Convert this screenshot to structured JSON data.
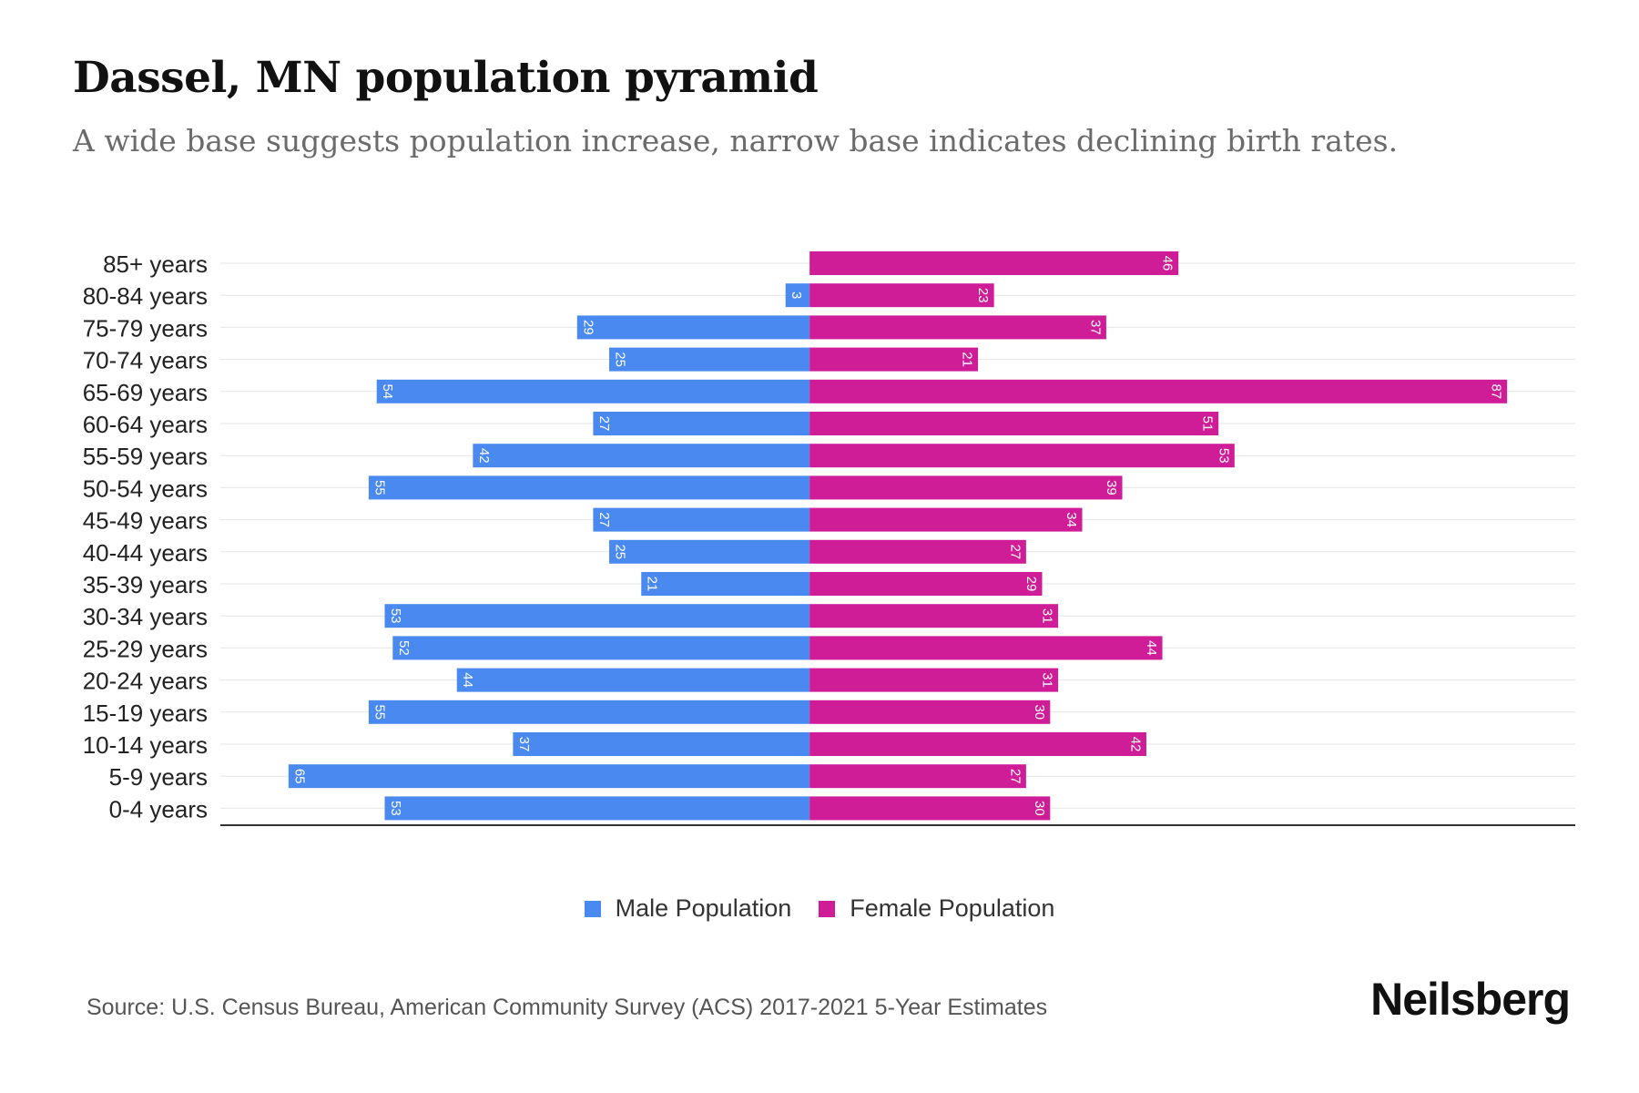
{
  "title": "Dassel, MN population pyramid",
  "subtitle": "A wide base suggests population increase, narrow base indicates declining birth rates.",
  "legend": {
    "male": "Male Population",
    "female": "Female Population"
  },
  "colors": {
    "male": "#4a8af0",
    "female": "#cf1d98",
    "grid": "#e6e6e6",
    "axis": "#333333"
  },
  "source": "Source: U.S. Census Bureau, American Community Survey (ACS) 2017-2021 5-Year Estimates",
  "brand": "Neilsberg",
  "chart_data": {
    "type": "bar",
    "orientation": "horizontal-diverging",
    "categories": [
      "85+ years",
      "80-84 years",
      "75-79 years",
      "70-74 years",
      "65-69 years",
      "60-64 years",
      "55-59 years",
      "50-54 years",
      "45-49 years",
      "40-44 years",
      "35-39 years",
      "30-34 years",
      "25-29 years",
      "20-24 years",
      "15-19 years",
      "10-14 years",
      "5-9 years",
      "0-4 years"
    ],
    "series": [
      {
        "name": "Male Population",
        "values": [
          0,
          3,
          29,
          25,
          54,
          27,
          42,
          55,
          27,
          25,
          21,
          53,
          52,
          44,
          55,
          37,
          65,
          53
        ]
      },
      {
        "name": "Female Population",
        "values": [
          46,
          23,
          37,
          21,
          87,
          51,
          53,
          39,
          34,
          27,
          29,
          31,
          44,
          31,
          30,
          42,
          27,
          30
        ]
      }
    ],
    "xlim": [
      -73.5,
      95.5
    ],
    "grid": true,
    "legend_position": "bottom-center"
  }
}
